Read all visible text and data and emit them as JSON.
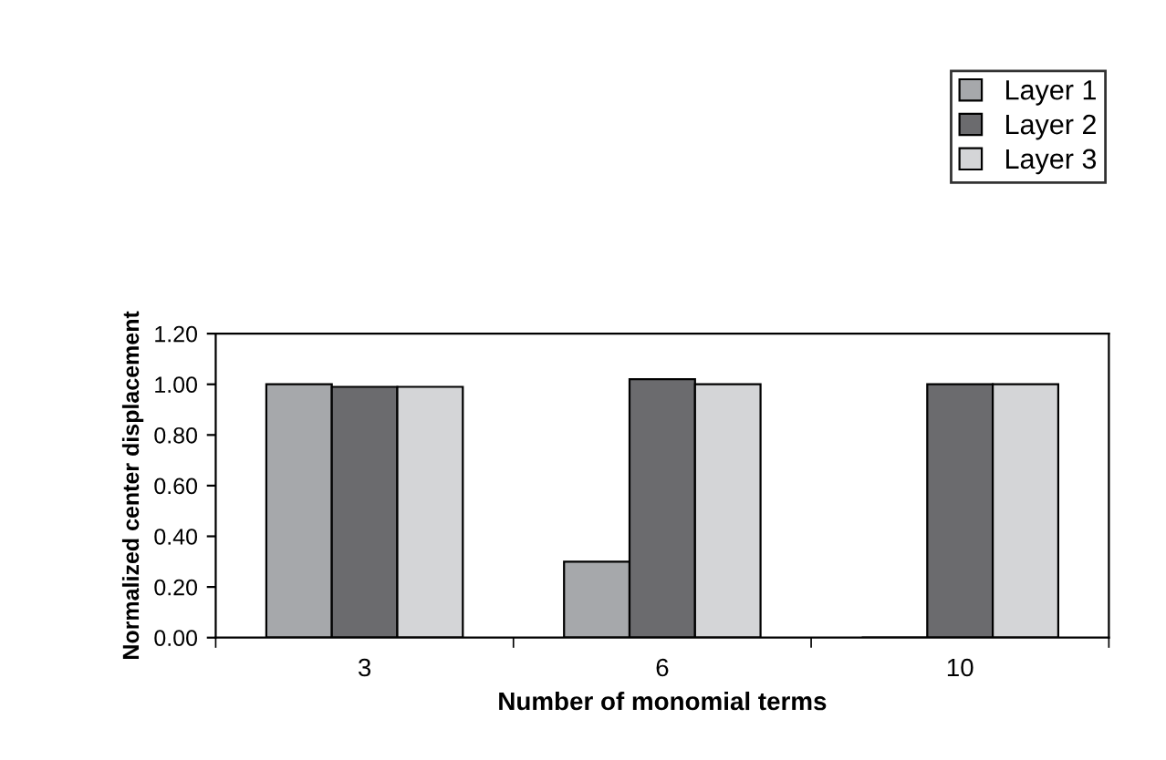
{
  "chart_data": {
    "type": "bar",
    "xlabel": "Number of monomial terms",
    "ylabel": "Normalized center displacement",
    "categories": [
      "3",
      "6",
      "10"
    ],
    "series": [
      {
        "name": "Layer 1",
        "color": "#a6a8ab",
        "values": [
          1.0,
          0.3,
          0
        ]
      },
      {
        "name": "Layer 2",
        "color": "#6b6b6e",
        "values": [
          0.99,
          1.02,
          1.0
        ]
      },
      {
        "name": "Layer 3",
        "color": "#d4d5d7",
        "values": [
          0.99,
          1.0,
          1.0
        ]
      }
    ],
    "ylim": [
      0,
      1.2
    ],
    "yticks": [
      {
        "value": 0,
        "label": "0.00"
      },
      {
        "value": 0.2,
        "label": "0.20"
      },
      {
        "value": 0.4,
        "label": "0.40"
      },
      {
        "value": 0.6,
        "label": "0.60"
      },
      {
        "value": 0.8,
        "label": "0.80"
      },
      {
        "value": 1.0,
        "label": "1.00"
      },
      {
        "value": 1.2,
        "label": "1.20"
      }
    ],
    "grid": false,
    "legend": "top right"
  }
}
